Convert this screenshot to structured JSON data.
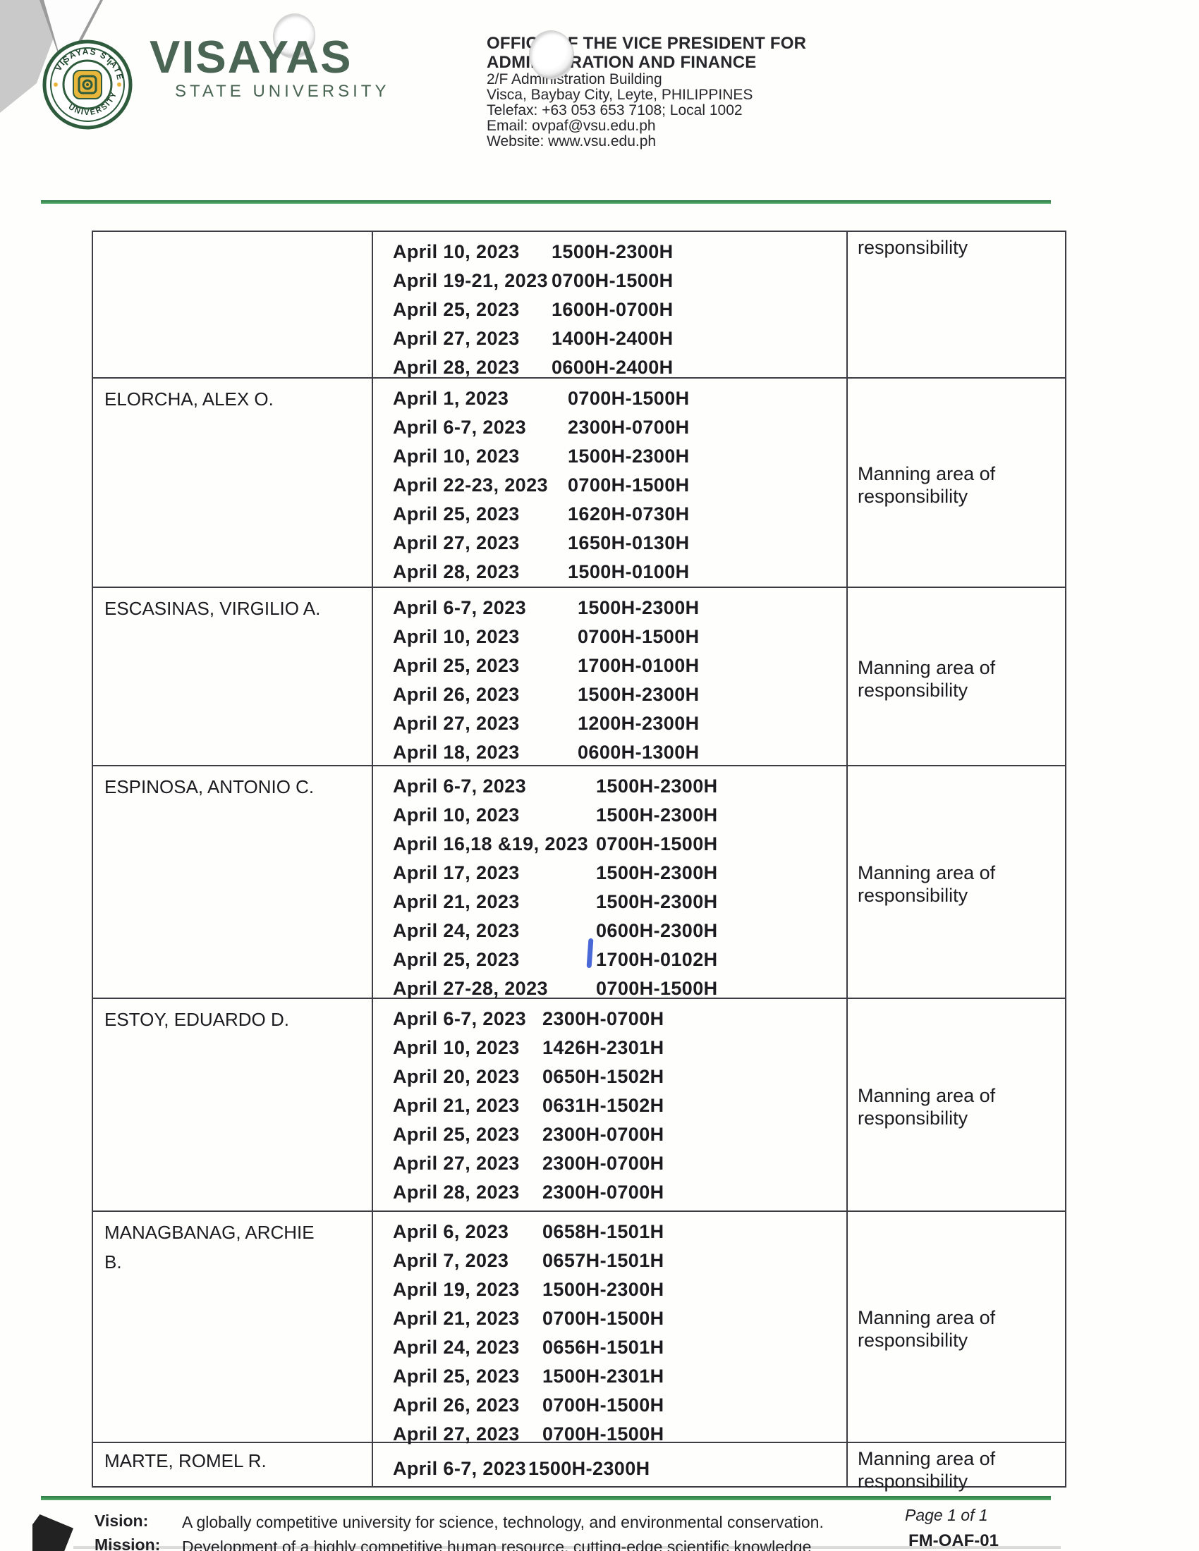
{
  "header": {
    "university_name": "VISAYAS",
    "university_subtitle": "STATE UNIVERSITY",
    "seal_text_top": "VISAYAS STATE",
    "seal_text_bottom": "UNIVERSITY",
    "office_title_line1": "OFFICE OF THE VICE PRESIDENT FOR",
    "office_title_line2": "ADMINISTRATION AND FINANCE",
    "address_line1": "2/F Administration Building",
    "address_line2": "Visca, Baybay City, Leyte, PHILIPPINES",
    "telefax": "Telefax: +63 053 653 7108; Local 1002",
    "email": "Email: ovpaf@vsu.edu.ph",
    "website": "Website: www.vsu.edu.ph"
  },
  "table": {
    "blocks": [
      {
        "name_lines": [],
        "note": "responsibility",
        "entries": [
          {
            "date": "April 10, 2023",
            "time": "1500H-2300H"
          },
          {
            "date": "April 19-21, 2023",
            "time": "0700H-1500H"
          },
          {
            "date": "April 25, 2023",
            "time": "1600H-0700H"
          },
          {
            "date": "April 27, 2023",
            "time": "1400H-2400H"
          },
          {
            "date": "April 28, 2023",
            "time": "0600H-2400H"
          }
        ]
      },
      {
        "name_lines": [
          "ELORCHA, ALEX O."
        ],
        "note": "Manning area of responsibility",
        "entries": [
          {
            "date": "April 1, 2023",
            "time": "0700H-1500H"
          },
          {
            "date": "April 6-7, 2023",
            "time": "2300H-0700H"
          },
          {
            "date": "April 10, 2023",
            "time": "1500H-2300H"
          },
          {
            "date": "April 22-23, 2023",
            "time": "0700H-1500H"
          },
          {
            "date": "April 25, 2023",
            "time": "1620H-0730H"
          },
          {
            "date": "April 27, 2023",
            "time": "1650H-0130H"
          },
          {
            "date": "April 28, 2023",
            "time": "1500H-0100H"
          }
        ]
      },
      {
        "name_lines": [
          "ESCASINAS, VIRGILIO A."
        ],
        "note": "Manning area of responsibility",
        "entries": [
          {
            "date": "April 6-7, 2023",
            "time": "1500H-2300H"
          },
          {
            "date": "April 10, 2023",
            "time": "0700H-1500H"
          },
          {
            "date": "April 25, 2023",
            "time": "1700H-0100H"
          },
          {
            "date": "April 26, 2023",
            "time": "1500H-2300H"
          },
          {
            "date": "April 27, 2023",
            "time": "1200H-2300H"
          },
          {
            "date": "April 18, 2023",
            "time": "0600H-1300H"
          }
        ]
      },
      {
        "name_lines": [
          "ESPINOSA, ANTONIO C."
        ],
        "note": "Manning area of responsibility",
        "entries": [
          {
            "date": "April 6-7, 2023",
            "time": "1500H-2300H"
          },
          {
            "date": "April 10, 2023",
            "time": "1500H-2300H"
          },
          {
            "date": "April 16,18 &19, 2023",
            "time": "0700H-1500H"
          },
          {
            "date": "April 17, 2023",
            "time": "1500H-2300H"
          },
          {
            "date": "April 21, 2023",
            "time": "1500H-2300H"
          },
          {
            "date": "April 24, 2023",
            "time": "0600H-2300H"
          },
          {
            "date": "April 25, 2023",
            "time": "1700H-0102H"
          },
          {
            "date": "April 27-28, 2023",
            "time": "0700H-1500H"
          }
        ]
      },
      {
        "name_lines": [
          "ESTOY, EDUARDO D."
        ],
        "note": "Manning area of responsibility",
        "entries": [
          {
            "date": "April 6-7, 2023",
            "time": "2300H-0700H"
          },
          {
            "date": "April 10, 2023",
            "time": "1426H-2301H"
          },
          {
            "date": "April 20, 2023",
            "time": "0650H-1502H"
          },
          {
            "date": "April 21, 2023",
            "time": "0631H-1502H"
          },
          {
            "date": "April 25, 2023",
            "time": "2300H-0700H"
          },
          {
            "date": "April 27, 2023",
            "time": "2300H-0700H"
          },
          {
            "date": "April 28, 2023",
            "time": "2300H-0700H"
          }
        ]
      },
      {
        "name_lines": [
          "MANAGBANAG, ARCHIE",
          "B."
        ],
        "note": "Manning area of responsibility",
        "entries": [
          {
            "date": "April 6, 2023",
            "time": "0658H-1501H"
          },
          {
            "date": "April 7, 2023",
            "time": "0657H-1501H"
          },
          {
            "date": "April 19, 2023",
            "time": "1500H-2300H"
          },
          {
            "date": "April 21, 2023",
            "time": "0700H-1500H"
          },
          {
            "date": "April 24, 2023",
            "time": "0656H-1501H"
          },
          {
            "date": "April 25, 2023",
            "time": "1500H-2301H"
          },
          {
            "date": "April 26, 2023",
            "time": "0700H-1500H"
          },
          {
            "date": "April 27, 2023",
            "time": "0700H-1500H"
          }
        ]
      },
      {
        "name_lines": [
          "MARTE, ROMEL R."
        ],
        "note": "Manning area of responsibility",
        "entries": [
          {
            "date": "April 6-7, 2023",
            "time": "1500H-2300H"
          }
        ]
      }
    ]
  },
  "footer": {
    "vision_label": "Vision:",
    "vision_text": "A globally competitive university for science, technology, and environmental conservation.",
    "mission_label": "Mission:",
    "mission_text": "Development of a highly competitive human resource, cutting-edge scientific knowledge",
    "page_label": "Page 1 of 1",
    "form_code": "FM-OAF-01"
  },
  "colors": {
    "brand_green": "#4a6553",
    "rule_green": "#3f9b57",
    "seal_gold": "#e9b63c",
    "pen_blue": "#2a4fd0"
  }
}
